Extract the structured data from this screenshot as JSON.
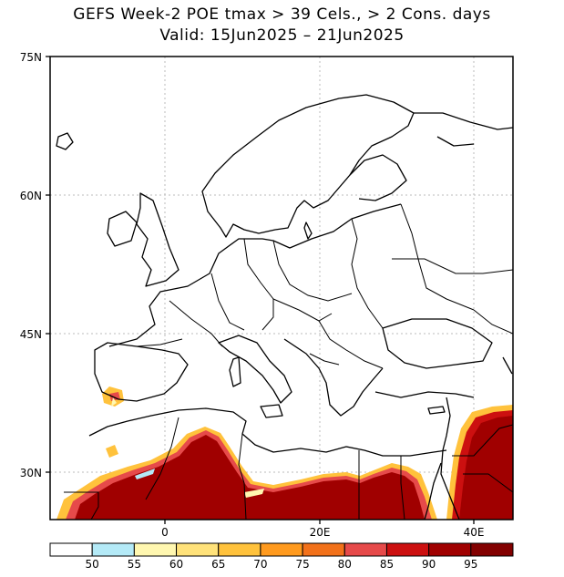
{
  "map": {
    "title_line1": "GEFS Week-2 POE tmax > 39 Cels., > 2 Cons. days",
    "title_line2": "Valid: 15Jun2025 – 21Jun2025",
    "lat_labels": [
      "30N",
      "45N",
      "60N",
      "75N"
    ],
    "lon_labels": [
      "0",
      "20E",
      "40E"
    ]
  },
  "legend": {
    "levels": [
      "50",
      "55",
      "60",
      "65",
      "70",
      "75",
      "80",
      "85",
      "90",
      "95"
    ],
    "colors": [
      "#ffffff",
      "#b4eaf7",
      "#fff7b0",
      "#ffe27a",
      "#ffc23c",
      "#ff9a1e",
      "#f2711a",
      "#e64a4a",
      "#cc1010",
      "#a00000",
      "#820000"
    ]
  }
}
